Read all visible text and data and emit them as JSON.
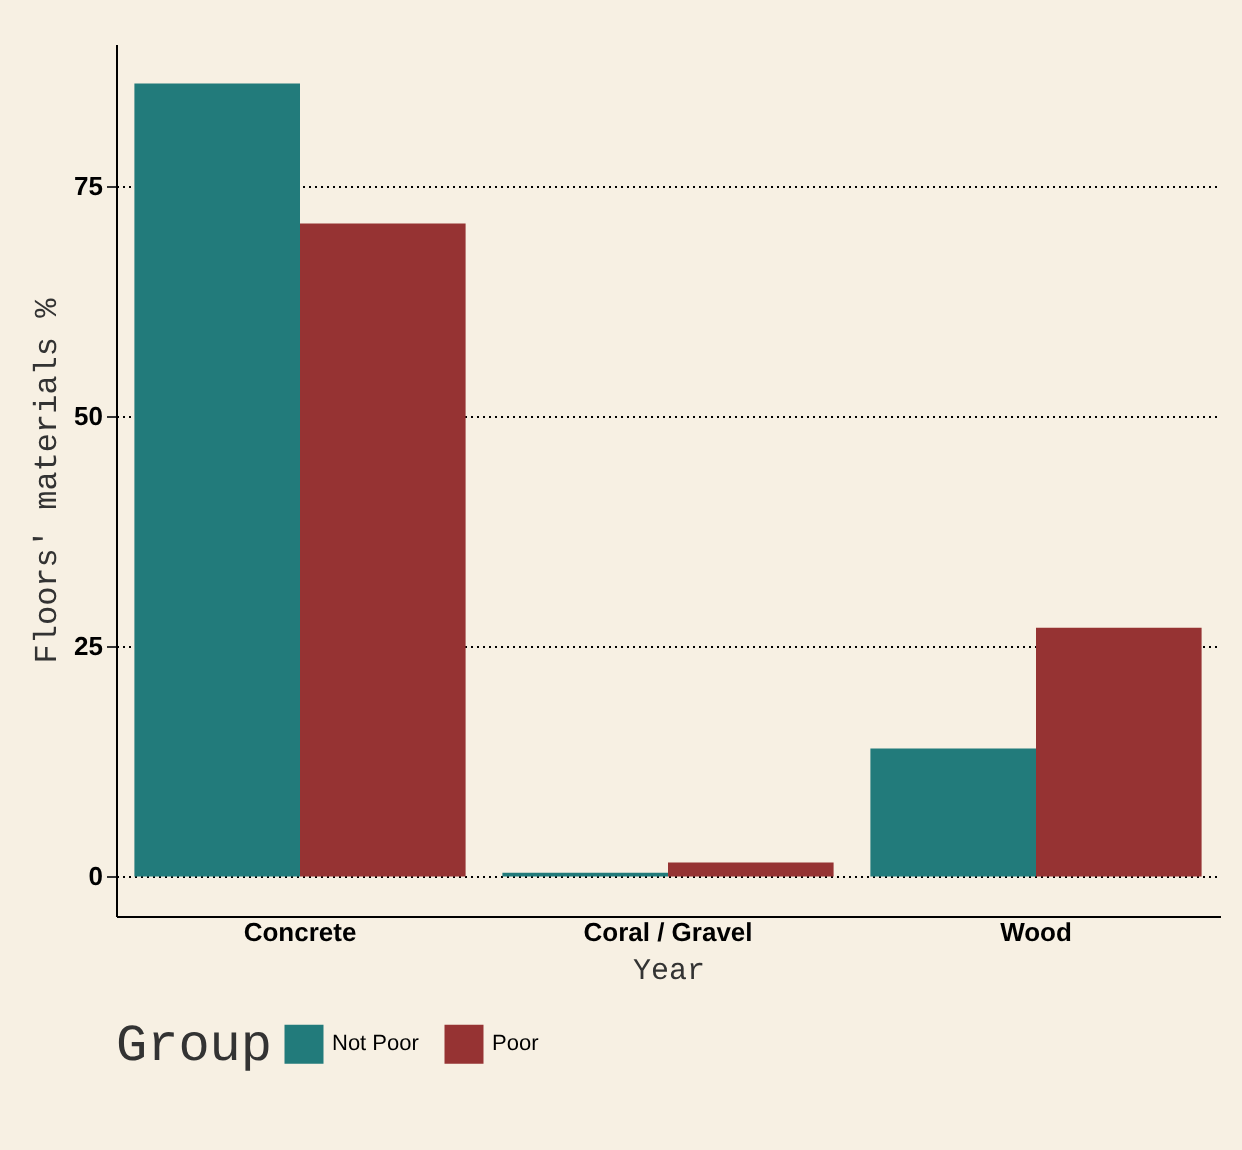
{
  "chart_data": {
    "type": "bar",
    "xlabel": "Year",
    "ylabel": "Floors' materials %",
    "legend_title": "Group",
    "categories": [
      "Concrete",
      "Coral / Gravel",
      "Wood"
    ],
    "series": [
      {
        "name": "Not Poor",
        "color": "#227b7b",
        "values": [
          86.1,
          0.4,
          13.9
        ]
      },
      {
        "name": "Poor",
        "color": "#963333",
        "values": [
          70.9,
          1.5,
          27.0
        ]
      }
    ],
    "ylim": [
      -4.3,
      90.4
    ],
    "yticks": [
      0,
      25,
      50,
      75
    ],
    "grid": "y",
    "legend": "bottom"
  }
}
